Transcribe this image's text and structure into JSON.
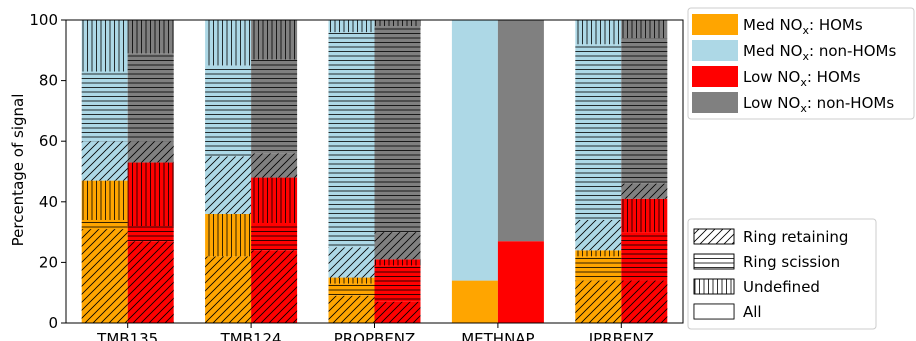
{
  "chart_data": {
    "type": "bar",
    "stacked": true,
    "grouped": true,
    "ylabel": "Percentage of signal",
    "ylim": [
      0,
      100
    ],
    "yticks": [
      0,
      20,
      40,
      60,
      80,
      100
    ],
    "categories": [
      "TMB135",
      "TMB124",
      "PROPBENZ",
      "METHNAP",
      "IPRBENZ"
    ],
    "conditions": [
      {
        "name": "Med NOx",
        "hom_color": "#FFA500",
        "nonhom_color": "#ADD8E6",
        "bars": [
          {
            "hom": [
              {
                "type": "Ring retaining",
                "value": 31
              },
              {
                "type": "Ring scission",
                "value": 3
              },
              {
                "type": "Undefined",
                "value": 13
              }
            ],
            "nonhom": [
              {
                "type": "Ring retaining",
                "value": 13
              },
              {
                "type": "Ring scission",
                "value": 23
              },
              {
                "type": "Undefined",
                "value": 17
              }
            ]
          },
          {
            "hom": [
              {
                "type": "Ring retaining",
                "value": 22
              },
              {
                "type": "Ring scission",
                "value": 0
              },
              {
                "type": "Undefined",
                "value": 14
              }
            ],
            "nonhom": [
              {
                "type": "Ring retaining",
                "value": 19
              },
              {
                "type": "Ring scission",
                "value": 30
              },
              {
                "type": "Undefined",
                "value": 15
              }
            ]
          },
          {
            "hom": [
              {
                "type": "Ring retaining",
                "value": 9
              },
              {
                "type": "Ring scission",
                "value": 4
              },
              {
                "type": "Undefined",
                "value": 2
              }
            ],
            "nonhom": [
              {
                "type": "Ring retaining",
                "value": 10
              },
              {
                "type": "Ring scission",
                "value": 71
              },
              {
                "type": "Undefined",
                "value": 4
              }
            ]
          },
          {
            "hom": [
              {
                "type": "All",
                "value": 14
              }
            ],
            "nonhom": [
              {
                "type": "All",
                "value": 86
              }
            ]
          },
          {
            "hom": [
              {
                "type": "Ring retaining",
                "value": 14
              },
              {
                "type": "Ring scission",
                "value": 8
              },
              {
                "type": "Undefined",
                "value": 2
              }
            ],
            "nonhom": [
              {
                "type": "Ring retaining",
                "value": 10
              },
              {
                "type": "Ring scission",
                "value": 58
              },
              {
                "type": "Undefined",
                "value": 8
              }
            ]
          }
        ]
      },
      {
        "name": "Low NOx",
        "hom_color": "#FF0000",
        "nonhom_color": "#808080",
        "bars": [
          {
            "hom": [
              {
                "type": "Ring retaining",
                "value": 27
              },
              {
                "type": "Ring scission",
                "value": 5
              },
              {
                "type": "Undefined",
                "value": 21
              }
            ],
            "nonhom": [
              {
                "type": "Ring retaining",
                "value": 7
              },
              {
                "type": "Ring scission",
                "value": 29
              },
              {
                "type": "Undefined",
                "value": 11
              }
            ]
          },
          {
            "hom": [
              {
                "type": "Ring retaining",
                "value": 24
              },
              {
                "type": "Ring scission",
                "value": 9
              },
              {
                "type": "Undefined",
                "value": 15
              }
            ],
            "nonhom": [
              {
                "type": "Ring retaining",
                "value": 8
              },
              {
                "type": "Ring scission",
                "value": 31
              },
              {
                "type": "Undefined",
                "value": 13
              }
            ]
          },
          {
            "hom": [
              {
                "type": "Ring retaining",
                "value": 7
              },
              {
                "type": "Ring scission",
                "value": 12
              },
              {
                "type": "Undefined",
                "value": 2
              }
            ],
            "nonhom": [
              {
                "type": "Ring retaining",
                "value": 9
              },
              {
                "type": "Ring scission",
                "value": 68
              },
              {
                "type": "Undefined",
                "value": 2
              }
            ]
          },
          {
            "hom": [
              {
                "type": "All",
                "value": 27
              }
            ],
            "nonhom": [
              {
                "type": "All",
                "value": 73
              }
            ]
          },
          {
            "hom": [
              {
                "type": "Ring retaining",
                "value": 14
              },
              {
                "type": "Ring scission",
                "value": 16
              },
              {
                "type": "Undefined",
                "value": 11
              }
            ],
            "nonhom": [
              {
                "type": "Ring retaining",
                "value": 5
              },
              {
                "type": "Ring scission",
                "value": 48
              },
              {
                "type": "Undefined",
                "value": 6
              }
            ]
          }
        ]
      }
    ],
    "legend_series": [
      {
        "prefix": "Med NO",
        "sub": "x",
        "suffix": ": HOMs",
        "color": "#FFA500"
      },
      {
        "prefix": "Med NO",
        "sub": "x",
        "suffix": ": non-HOMs",
        "color": "#ADD8E6"
      },
      {
        "prefix": "Low NO",
        "sub": "x",
        "suffix": ": HOMs",
        "color": "#FF0000"
      },
      {
        "prefix": "Low NO",
        "sub": "x",
        "suffix": ": non-HOMs",
        "color": "#808080"
      }
    ],
    "legend_patterns": [
      {
        "label": "Ring retaining",
        "pattern": "diag"
      },
      {
        "label": "Ring scission",
        "pattern": "horiz"
      },
      {
        "label": "Undefined",
        "pattern": "vert"
      },
      {
        "label": "All",
        "pattern": "none"
      }
    ],
    "legend_placement": [
      "top-right outside",
      "bottom-right outside"
    ],
    "grid": false
  }
}
